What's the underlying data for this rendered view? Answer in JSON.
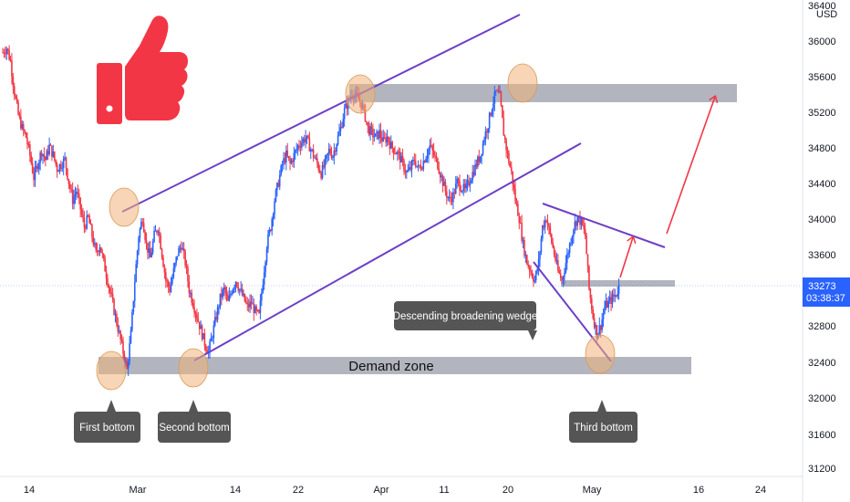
{
  "chart_data": {
    "type": "candlestick",
    "currency": "USD",
    "ylim": [
      31200,
      36400
    ],
    "y_ticks": [
      31200,
      31600,
      32000,
      32400,
      32800,
      33200,
      33600,
      34000,
      34400,
      34800,
      35200,
      35600,
      36000,
      36400
    ],
    "y_tick_labels": [
      "31200",
      "31600",
      "32000",
      "32400",
      "32800",
      "33600",
      "34000",
      "34400",
      "34800",
      "35200",
      "35600",
      "36000",
      "36400"
    ],
    "x_tick_labels": [
      "14",
      "Mar",
      "14",
      "22",
      "Apr",
      "11",
      "20",
      "May",
      "16",
      "24"
    ],
    "last_price": {
      "value": "33273",
      "countdown": "03:38:37"
    },
    "colors": {
      "up": "#2962ff",
      "down": "#f23645",
      "channel": "#6d3fc7",
      "arrow": "#f23645",
      "zone": "#b2b5be",
      "marker": "#f0b27a",
      "price_tag": "#2962ff"
    },
    "price_path": [
      35850,
      35900,
      35750,
      35400,
      35150,
      35000,
      34900,
      34700,
      34450,
      34600,
      34750,
      34650,
      34800,
      34700,
      34550,
      34600,
      34650,
      34400,
      34200,
      34300,
      34100,
      33900,
      34000,
      33800,
      33600,
      33700,
      33500,
      33300,
      33100,
      32900,
      32700,
      32500,
      32300,
      32700,
      33300,
      33800,
      34000,
      33700,
      33550,
      33800,
      33900,
      33600,
      33300,
      33200,
      33400,
      33600,
      33700,
      33500,
      33200,
      33050,
      32900,
      32750,
      32600,
      32500,
      32700,
      32900,
      33100,
      33200,
      33050,
      33200,
      33300,
      33200,
      33100,
      33000,
      33050,
      32950,
      32900,
      33300,
      33700,
      33900,
      34200,
      34400,
      34600,
      34700,
      34600,
      34700,
      34800,
      34850,
      34900,
      34800,
      34700,
      34600,
      34500,
      34600,
      34750,
      34700,
      34850,
      35000,
      35200,
      35300,
      35400,
      35350,
      35300,
      35200,
      35000,
      34950,
      34900,
      34950,
      34850,
      34900,
      34800,
      34750,
      34700,
      34600,
      34500,
      34550,
      34650,
      34550,
      34600,
      34700,
      34800,
      34700,
      34600,
      34450,
      34300,
      34200,
      34250,
      34400,
      34350,
      34300,
      34400,
      34500,
      34600,
      34700,
      34900,
      35050,
      35250,
      35400,
      35350,
      34950,
      34700,
      34500,
      34200,
      34000,
      33700,
      33500,
      33400,
      33300,
      33500,
      33900,
      34000,
      33800,
      33600,
      33400,
      33300,
      33500,
      33700,
      33900,
      34000,
      33950,
      33800,
      33200,
      32900,
      32700,
      32800,
      33000,
      33050,
      33100,
      33150,
      33273
    ],
    "annotations": {
      "demand_zone": "Demand zone",
      "wedge": "Descending broadening wedge",
      "first_bottom": "First bottom",
      "second_bottom": "Second bottom",
      "third_bottom": "Third bottom"
    }
  }
}
